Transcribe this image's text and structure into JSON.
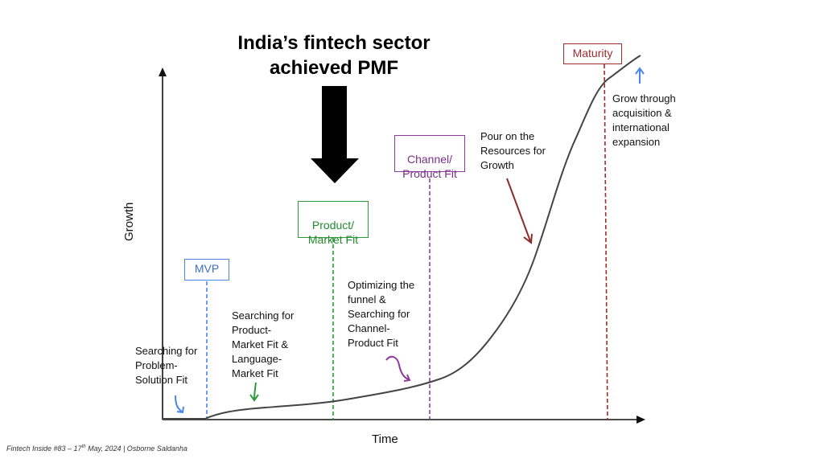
{
  "title": {
    "line1": "India’s fintech sector",
    "line2": "achieved PMF"
  },
  "axes": {
    "x_label": "Time",
    "y_label": "Growth"
  },
  "stages": {
    "mvp": "MVP",
    "product_market_fit": "Product/\nMarket Fit",
    "channel_product_fit": "Channel/\nProduct Fit",
    "maturity": "Maturity"
  },
  "notes": {
    "problem_solution": "Searching for\nProblem-\nSolution Fit",
    "product_market": "Searching for\nProduct-\nMarket Fit &\nLanguage-\nMarket Fit",
    "funnel": "Optimizing the\nfunnel &\nSearching for\nChannel-\nProduct Fit",
    "resources": "Pour on the\nResources for\nGrowth",
    "acquisition": "Grow through\nacquisition &\ninternational\nexpansion"
  },
  "footer": {
    "text_before": "Fintech Inside #83 – 17",
    "sup": "th",
    "text_after": " May, 2024 | Osborne Saldanha"
  },
  "colors": {
    "mvp": "#4a86e8",
    "pmf": "#2e9a3a",
    "channel": "#8e3a9e",
    "maturity": "#9b2d2d",
    "resources_arrow": "#8b2a2a"
  }
}
